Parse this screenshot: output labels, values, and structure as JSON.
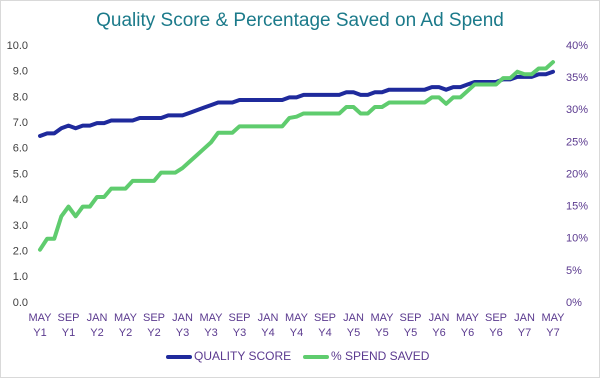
{
  "chart_data": {
    "type": "line",
    "title": "Quality Score & Percentage Saved on Ad Spend",
    "categories": [
      "MAY Y1",
      null,
      null,
      null,
      "SEP Y1",
      null,
      null,
      null,
      "JAN Y2",
      null,
      null,
      null,
      "MAY Y2",
      null,
      null,
      null,
      "SEP Y2",
      null,
      null,
      null,
      "JAN Y3",
      null,
      null,
      null,
      "MAY Y3",
      null,
      null,
      null,
      "SEP Y3",
      null,
      null,
      null,
      "JAN Y4",
      null,
      null,
      null,
      "MAY Y4",
      null,
      null,
      null,
      "SEP Y4",
      null,
      null,
      null,
      "JAN Y5",
      null,
      null,
      null,
      "MAY Y5",
      null,
      null,
      null,
      "SEP Y5",
      null,
      null,
      null,
      "JAN Y6",
      null,
      null,
      null,
      "MAY Y6",
      null,
      null,
      null,
      "SEP Y6",
      null,
      null,
      null,
      "JAN Y7",
      null,
      null,
      null,
      "MAY Y7"
    ],
    "series": [
      {
        "name": "QUALITY SCORE",
        "color": "#1f2a9c",
        "axis": "y",
        "values": [
          6.5,
          6.6,
          6.6,
          6.8,
          6.9,
          6.8,
          6.9,
          6.9,
          7.0,
          7.0,
          7.1,
          7.1,
          7.1,
          7.1,
          7.2,
          7.2,
          7.2,
          7.2,
          7.3,
          7.3,
          7.3,
          7.4,
          7.5,
          7.6,
          7.7,
          7.8,
          7.8,
          7.8,
          7.9,
          7.9,
          7.9,
          7.9,
          7.9,
          7.9,
          7.9,
          8.0,
          8.0,
          8.1,
          8.1,
          8.1,
          8.1,
          8.1,
          8.1,
          8.2,
          8.2,
          8.1,
          8.1,
          8.2,
          8.2,
          8.3,
          8.3,
          8.3,
          8.3,
          8.3,
          8.3,
          8.4,
          8.4,
          8.3,
          8.4,
          8.4,
          8.5,
          8.6,
          8.6,
          8.6,
          8.6,
          8.7,
          8.7,
          8.8,
          8.8,
          8.8,
          8.9,
          8.9,
          9.0
        ]
      },
      {
        "name": "% SPEND SAVED",
        "color": "#5fcc6e",
        "axis": "y2",
        "values": [
          8.3,
          10,
          10,
          13.5,
          15,
          13.5,
          15,
          15,
          16.5,
          16.5,
          17.8,
          17.8,
          17.8,
          19,
          19,
          19,
          19,
          20.3,
          20.3,
          20.3,
          21,
          22,
          23,
          24,
          25,
          26.5,
          26.5,
          26.5,
          27.5,
          27.5,
          27.5,
          27.5,
          27.5,
          27.5,
          27.5,
          28.8,
          29,
          29.5,
          29.5,
          29.5,
          29.5,
          29.5,
          29.5,
          30.5,
          30.5,
          29.5,
          29.5,
          30.5,
          30.5,
          31.2,
          31.2,
          31.2,
          31.2,
          31.2,
          31.2,
          32,
          32,
          31,
          32,
          32,
          33,
          34,
          34,
          34,
          34,
          35,
          35,
          36,
          35.6,
          35.6,
          36.5,
          36.5,
          37.5
        ]
      }
    ],
    "ylim": [
      0,
      10
    ],
    "yticks": [
      {
        "value": 0,
        "label": "0.0"
      },
      {
        "value": 1,
        "label": "1.0"
      },
      {
        "value": 2,
        "label": "2.0"
      },
      {
        "value": 3,
        "label": "3.0"
      },
      {
        "value": 4,
        "label": "4.0"
      },
      {
        "value": 5,
        "label": "5.0"
      },
      {
        "value": 6,
        "label": "6.0"
      },
      {
        "value": 7,
        "label": "7.0"
      },
      {
        "value": 8,
        "label": "8.0"
      },
      {
        "value": 9,
        "label": "9.0"
      },
      {
        "value": 10,
        "label": "10.0"
      }
    ],
    "y2lim": [
      0,
      40
    ],
    "y2ticks": [
      {
        "value": 0,
        "label": "0%"
      },
      {
        "value": 5,
        "label": "5%"
      },
      {
        "value": 10,
        "label": "10%"
      },
      {
        "value": 15,
        "label": "15%"
      },
      {
        "value": 20,
        "label": "20%"
      },
      {
        "value": 25,
        "label": "25%"
      },
      {
        "value": 30,
        "label": "30%"
      },
      {
        "value": 35,
        "label": "35%"
      },
      {
        "value": 40,
        "label": "40%"
      }
    ],
    "grid": false,
    "legend": "bottom"
  }
}
